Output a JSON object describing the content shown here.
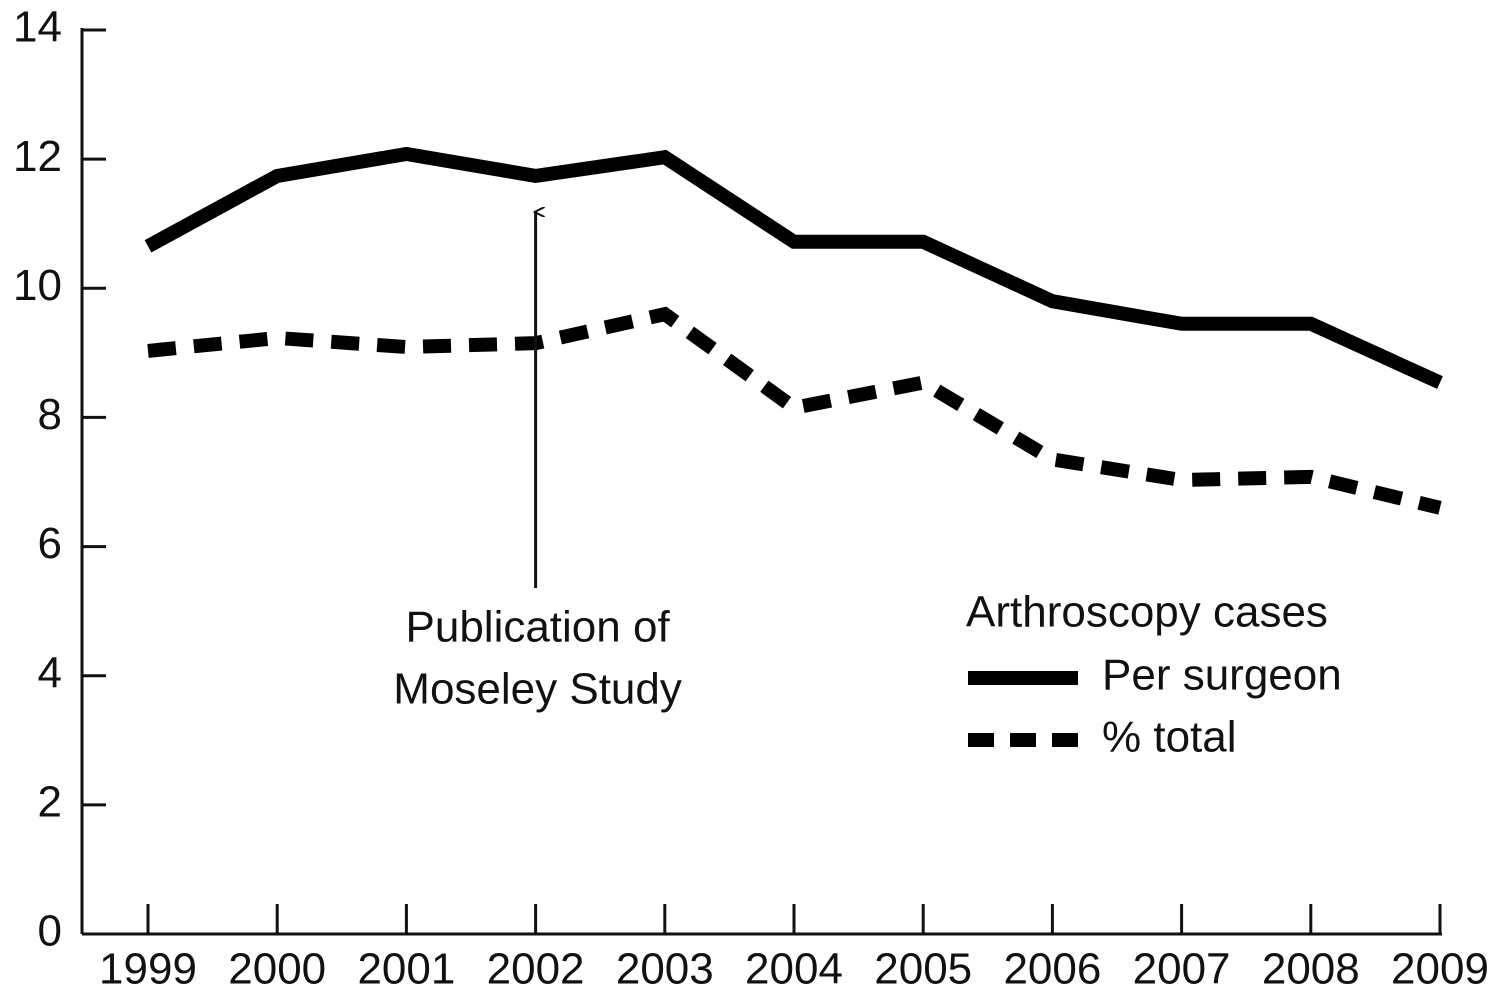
{
  "chart_data": {
    "type": "line",
    "categories": [
      "1999",
      "2000",
      "2001",
      "2002",
      "2003",
      "2004",
      "2005",
      "2006",
      "2007",
      "2008",
      "2009"
    ],
    "series": [
      {
        "name": "Per surgeon",
        "color": "#000000",
        "style": "solid",
        "values": [
          10.65,
          11.74,
          12.08,
          11.74,
          12.03,
          10.72,
          10.72,
          9.8,
          9.45,
          9.45,
          8.54
        ]
      },
      {
        "name": "% total",
        "color": "#000000",
        "style": "dashed",
        "values": [
          9.03,
          9.23,
          9.09,
          9.15,
          9.6,
          8.15,
          8.54,
          7.35,
          7.03,
          7.08,
          6.6
        ]
      }
    ],
    "legend_title": "Arthroscopy cases",
    "annotation": {
      "lines": [
        "Publication of",
        "Moseley Study"
      ],
      "category": "2002"
    },
    "ylim": [
      0,
      14
    ],
    "yticks": [
      0,
      2,
      4,
      6,
      8,
      10,
      12,
      14
    ],
    "grid": false
  }
}
